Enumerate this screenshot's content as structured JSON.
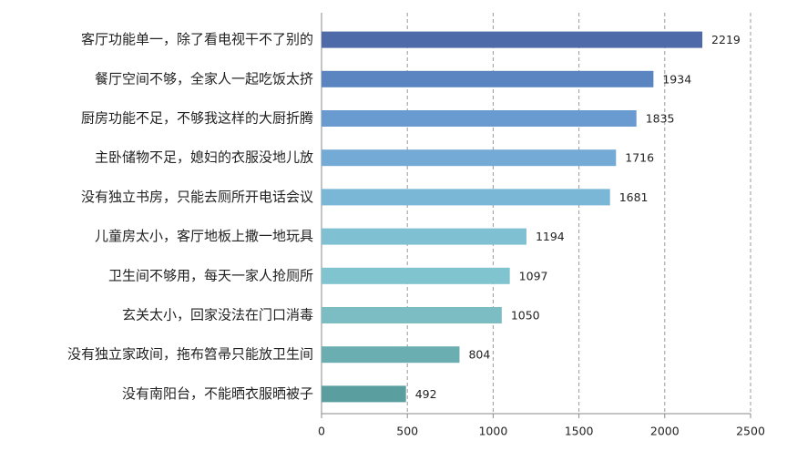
{
  "chart_data": {
    "type": "bar",
    "orientation": "horizontal",
    "categories": [
      "客厅功能单一，除了看电视干不了别的",
      "餐厅空间不够，全家人一起吃饭太挤",
      "厨房功能不足，不够我这样的大厨折腾",
      "主卧储物不足，媳妇的衣服没地儿放",
      "没有独立书房，只能去厕所开电话会议",
      "儿童房太小，客厅地板上撒一地玩具",
      "卫生间不够用，每天一家人抢厕所",
      "玄关太小，回家没法在门口消毒",
      "没有独立家政间，拖布笤帚只能放卫生间",
      "没有南阳台，不能晒衣服晒被子"
    ],
    "values": [
      2219,
      1934,
      1835,
      1716,
      1681,
      1194,
      1097,
      1050,
      804,
      492
    ],
    "colors": [
      "#4f6aa8",
      "#5a85c0",
      "#6a9bd0",
      "#74aad6",
      "#7ab6d6",
      "#7fc0d3",
      "#80c4cf",
      "#7bbdc2",
      "#6aaeb1",
      "#5a9e9f"
    ],
    "xlim": [
      0,
      2500
    ],
    "xticks": [
      0,
      500,
      1000,
      1500,
      2000,
      2500
    ],
    "grid": true
  }
}
